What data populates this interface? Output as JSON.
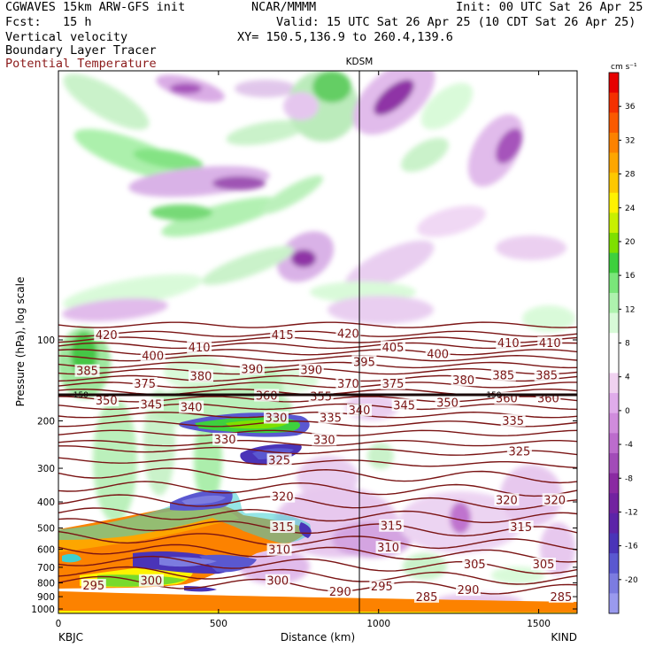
{
  "header": {
    "model": "CGWAVES 15km ARW-GFS init",
    "org": "NCAR/MMMM",
    "init": "Init: 00 UTC Sat 26 Apr 25",
    "fcst": "Fcst:   15 h",
    "valid": "Valid: 15 UTC Sat 26 Apr 25 (10 CDT Sat 26 Apr 25)",
    "field1": "Vertical velocity",
    "field2": "Boundary Layer Tracer",
    "field3": "Potential Temperature",
    "xy": "XY= 150.5,136.9 to 260.4,139.6"
  },
  "colors": {
    "theta_line": "#7a1414",
    "tropopause_line": "#1a0a0a"
  },
  "chart_data": {
    "type": "heatmap",
    "xlabel": "Distance (km)",
    "ylabel": "Pressure (hPa), log scale",
    "xlim": [
      0,
      1620
    ],
    "x_ticks": [
      0,
      500,
      1000,
      1500
    ],
    "y_scale": "log",
    "ylim": [
      1050,
      10
    ],
    "y_ticks": [
      100,
      200,
      300,
      400,
      500,
      600,
      700,
      800,
      900,
      1000
    ],
    "left_station": "KBJC",
    "right_station": "KIND",
    "mid_station": "KDSM",
    "mid_station_x_km": 940,
    "colorbar": {
      "unit": "cm s⁻¹",
      "ticks": [
        36,
        32,
        28,
        24,
        20,
        16,
        12,
        8,
        4,
        0,
        -4,
        -8,
        -12,
        -16,
        -20
      ],
      "colors": [
        "#e60000",
        "#f43000",
        "#fa5a00",
        "#fc8200",
        "#fda600",
        "#fdc800",
        "#fff200",
        "#c8f000",
        "#7ee000",
        "#3ed03e",
        "#7ae67a",
        "#aef2ae",
        "#d8fad8",
        "#ffffff",
        "#ffffff",
        "#f0d2f0",
        "#e0acea",
        "#d08cdc",
        "#bc6ccc",
        "#a24cb8",
        "#8a2aa2",
        "#7222a0",
        "#5c24a8",
        "#4a34b8",
        "#5a58d0",
        "#7c7ce0",
        "#9a9aee"
      ]
    },
    "theta_labels": [
      {
        "v": "420",
        "x": 150,
        "p": 97
      },
      {
        "v": "415",
        "x": 700,
        "p": 97
      },
      {
        "v": "420",
        "x": 905,
        "p": 96
      },
      {
        "v": "410",
        "x": 440,
        "p": 108
      },
      {
        "v": "405",
        "x": 1045,
        "p": 108
      },
      {
        "v": "410",
        "x": 1405,
        "p": 104
      },
      {
        "v": "410",
        "x": 1535,
        "p": 104
      },
      {
        "v": "400",
        "x": 295,
        "p": 116
      },
      {
        "v": "395",
        "x": 955,
        "p": 122
      },
      {
        "v": "400",
        "x": 1185,
        "p": 114
      },
      {
        "v": "385",
        "x": 90,
        "p": 132
      },
      {
        "v": "390",
        "x": 605,
        "p": 130
      },
      {
        "v": "390",
        "x": 790,
        "p": 131
      },
      {
        "v": "380",
        "x": 445,
        "p": 138
      },
      {
        "v": "375",
        "x": 270,
        "p": 147
      },
      {
        "v": "370",
        "x": 905,
        "p": 147
      },
      {
        "v": "375",
        "x": 1045,
        "p": 147
      },
      {
        "v": "380",
        "x": 1265,
        "p": 143
      },
      {
        "v": "385",
        "x": 1390,
        "p": 137
      },
      {
        "v": "385",
        "x": 1525,
        "p": 137
      },
      {
        "v": "360",
        "x": 650,
        "p": 163
      },
      {
        "v": "355",
        "x": 820,
        "p": 164
      },
      {
        "v": "360",
        "x": 1400,
        "p": 167
      },
      {
        "v": "360",
        "x": 1530,
        "p": 167
      },
      {
        "v": "350",
        "x": 150,
        "p": 170
      },
      {
        "v": "345",
        "x": 290,
        "p": 176
      },
      {
        "v": "340",
        "x": 415,
        "p": 180
      },
      {
        "v": "345",
        "x": 1080,
        "p": 177
      },
      {
        "v": "350",
        "x": 1215,
        "p": 173
      },
      {
        "v": "340",
        "x": 940,
        "p": 185
      },
      {
        "v": "330",
        "x": 680,
        "p": 197
      },
      {
        "v": "335",
        "x": 850,
        "p": 197
      },
      {
        "v": "335",
        "x": 1420,
        "p": 202
      },
      {
        "v": "330",
        "x": 520,
        "p": 237
      },
      {
        "v": "330",
        "x": 830,
        "p": 238
      },
      {
        "v": "325",
        "x": 690,
        "p": 283
      },
      {
        "v": "325",
        "x": 1440,
        "p": 263
      },
      {
        "v": "320",
        "x": 700,
        "p": 387
      },
      {
        "v": "320",
        "x": 1400,
        "p": 398
      },
      {
        "v": "320",
        "x": 1550,
        "p": 398
      },
      {
        "v": "315",
        "x": 700,
        "p": 502
      },
      {
        "v": "315",
        "x": 1040,
        "p": 497
      },
      {
        "v": "315",
        "x": 1445,
        "p": 502
      },
      {
        "v": "310",
        "x": 690,
        "p": 610
      },
      {
        "v": "310",
        "x": 1030,
        "p": 598
      },
      {
        "v": "305",
        "x": 1300,
        "p": 690
      },
      {
        "v": "305",
        "x": 1515,
        "p": 690
      },
      {
        "v": "300",
        "x": 290,
        "p": 795
      },
      {
        "v": "300",
        "x": 685,
        "p": 795
      },
      {
        "v": "295",
        "x": 110,
        "p": 828
      },
      {
        "v": "295",
        "x": 1010,
        "p": 835
      },
      {
        "v": "290",
        "x": 880,
        "p": 872
      },
      {
        "v": "290",
        "x": 1280,
        "p": 860
      },
      {
        "v": "285",
        "x": 1150,
        "p": 912
      },
      {
        "v": "285",
        "x": 1570,
        "p": 912
      }
    ],
    "tropopause": {
      "label": "150",
      "p": 160
    },
    "theta_lines_p": [
      88,
      95,
      100,
      105,
      111,
      117,
      124,
      131,
      139,
      147,
      156,
      166,
      177,
      190,
      205,
      222,
      242,
      265,
      292,
      325,
      365,
      410,
      460,
      520,
      580,
      640,
      710,
      780,
      850
    ]
  }
}
